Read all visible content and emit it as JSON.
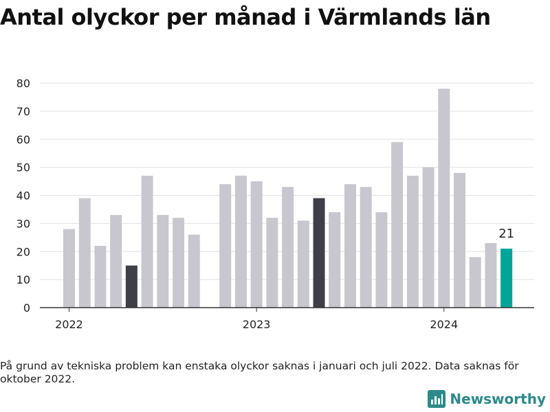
{
  "title": "Antal olyckor per månad i Värmlands län",
  "note": "På grund av tekniska problem kan enstaka olyckor saknas i januari och juli 2022. Data saknas för oktober 2022.",
  "brand": {
    "name": "Newsworthy",
    "icon": "bar-chart-logo-icon",
    "color": "#2c8a8a"
  },
  "chart_data": {
    "type": "bar",
    "title": "Antal olyckor per månad i Värmlands län",
    "xlabel": "",
    "ylabel": "",
    "ylim": [
      0,
      80
    ],
    "yticks": [
      0,
      10,
      20,
      30,
      40,
      50,
      60,
      70,
      80
    ],
    "xticks": [
      "2022",
      "2023",
      "2024"
    ],
    "grid": true,
    "colors": {
      "default": "#c8c7cf",
      "highlight": "#3f3f4a",
      "current": "#00a597"
    },
    "bars": [
      {
        "month": "2022-01",
        "value": 28,
        "style": "default"
      },
      {
        "month": "2022-02",
        "value": 39,
        "style": "default"
      },
      {
        "month": "2022-03",
        "value": 22,
        "style": "default"
      },
      {
        "month": "2022-04",
        "value": 33,
        "style": "default"
      },
      {
        "month": "2022-05",
        "value": 15,
        "style": "highlight"
      },
      {
        "month": "2022-06",
        "value": 47,
        "style": "default"
      },
      {
        "month": "2022-07",
        "value": 33,
        "style": "default"
      },
      {
        "month": "2022-08",
        "value": 32,
        "style": "default"
      },
      {
        "month": "2022-09",
        "value": 26,
        "style": "default"
      },
      {
        "month": "2022-10",
        "value": null,
        "style": "default"
      },
      {
        "month": "2022-11",
        "value": 44,
        "style": "default"
      },
      {
        "month": "2022-12",
        "value": 47,
        "style": "default"
      },
      {
        "month": "2023-01",
        "value": 45,
        "style": "default"
      },
      {
        "month": "2023-02",
        "value": 32,
        "style": "default"
      },
      {
        "month": "2023-03",
        "value": 43,
        "style": "default"
      },
      {
        "month": "2023-04",
        "value": 31,
        "style": "default"
      },
      {
        "month": "2023-05",
        "value": 39,
        "style": "highlight"
      },
      {
        "month": "2023-06",
        "value": 34,
        "style": "default"
      },
      {
        "month": "2023-07",
        "value": 44,
        "style": "default"
      },
      {
        "month": "2023-08",
        "value": 43,
        "style": "default"
      },
      {
        "month": "2023-09",
        "value": 34,
        "style": "default"
      },
      {
        "month": "2023-10",
        "value": 59,
        "style": "default"
      },
      {
        "month": "2023-11",
        "value": 47,
        "style": "default"
      },
      {
        "month": "2023-12",
        "value": 50,
        "style": "default"
      },
      {
        "month": "2024-01",
        "value": 78,
        "style": "default"
      },
      {
        "month": "2024-02",
        "value": 48,
        "style": "default"
      },
      {
        "month": "2024-03",
        "value": 18,
        "style": "default"
      },
      {
        "month": "2024-04",
        "value": 23,
        "style": "default"
      },
      {
        "month": "2024-05",
        "value": 21,
        "style": "current",
        "label": "21"
      }
    ]
  }
}
